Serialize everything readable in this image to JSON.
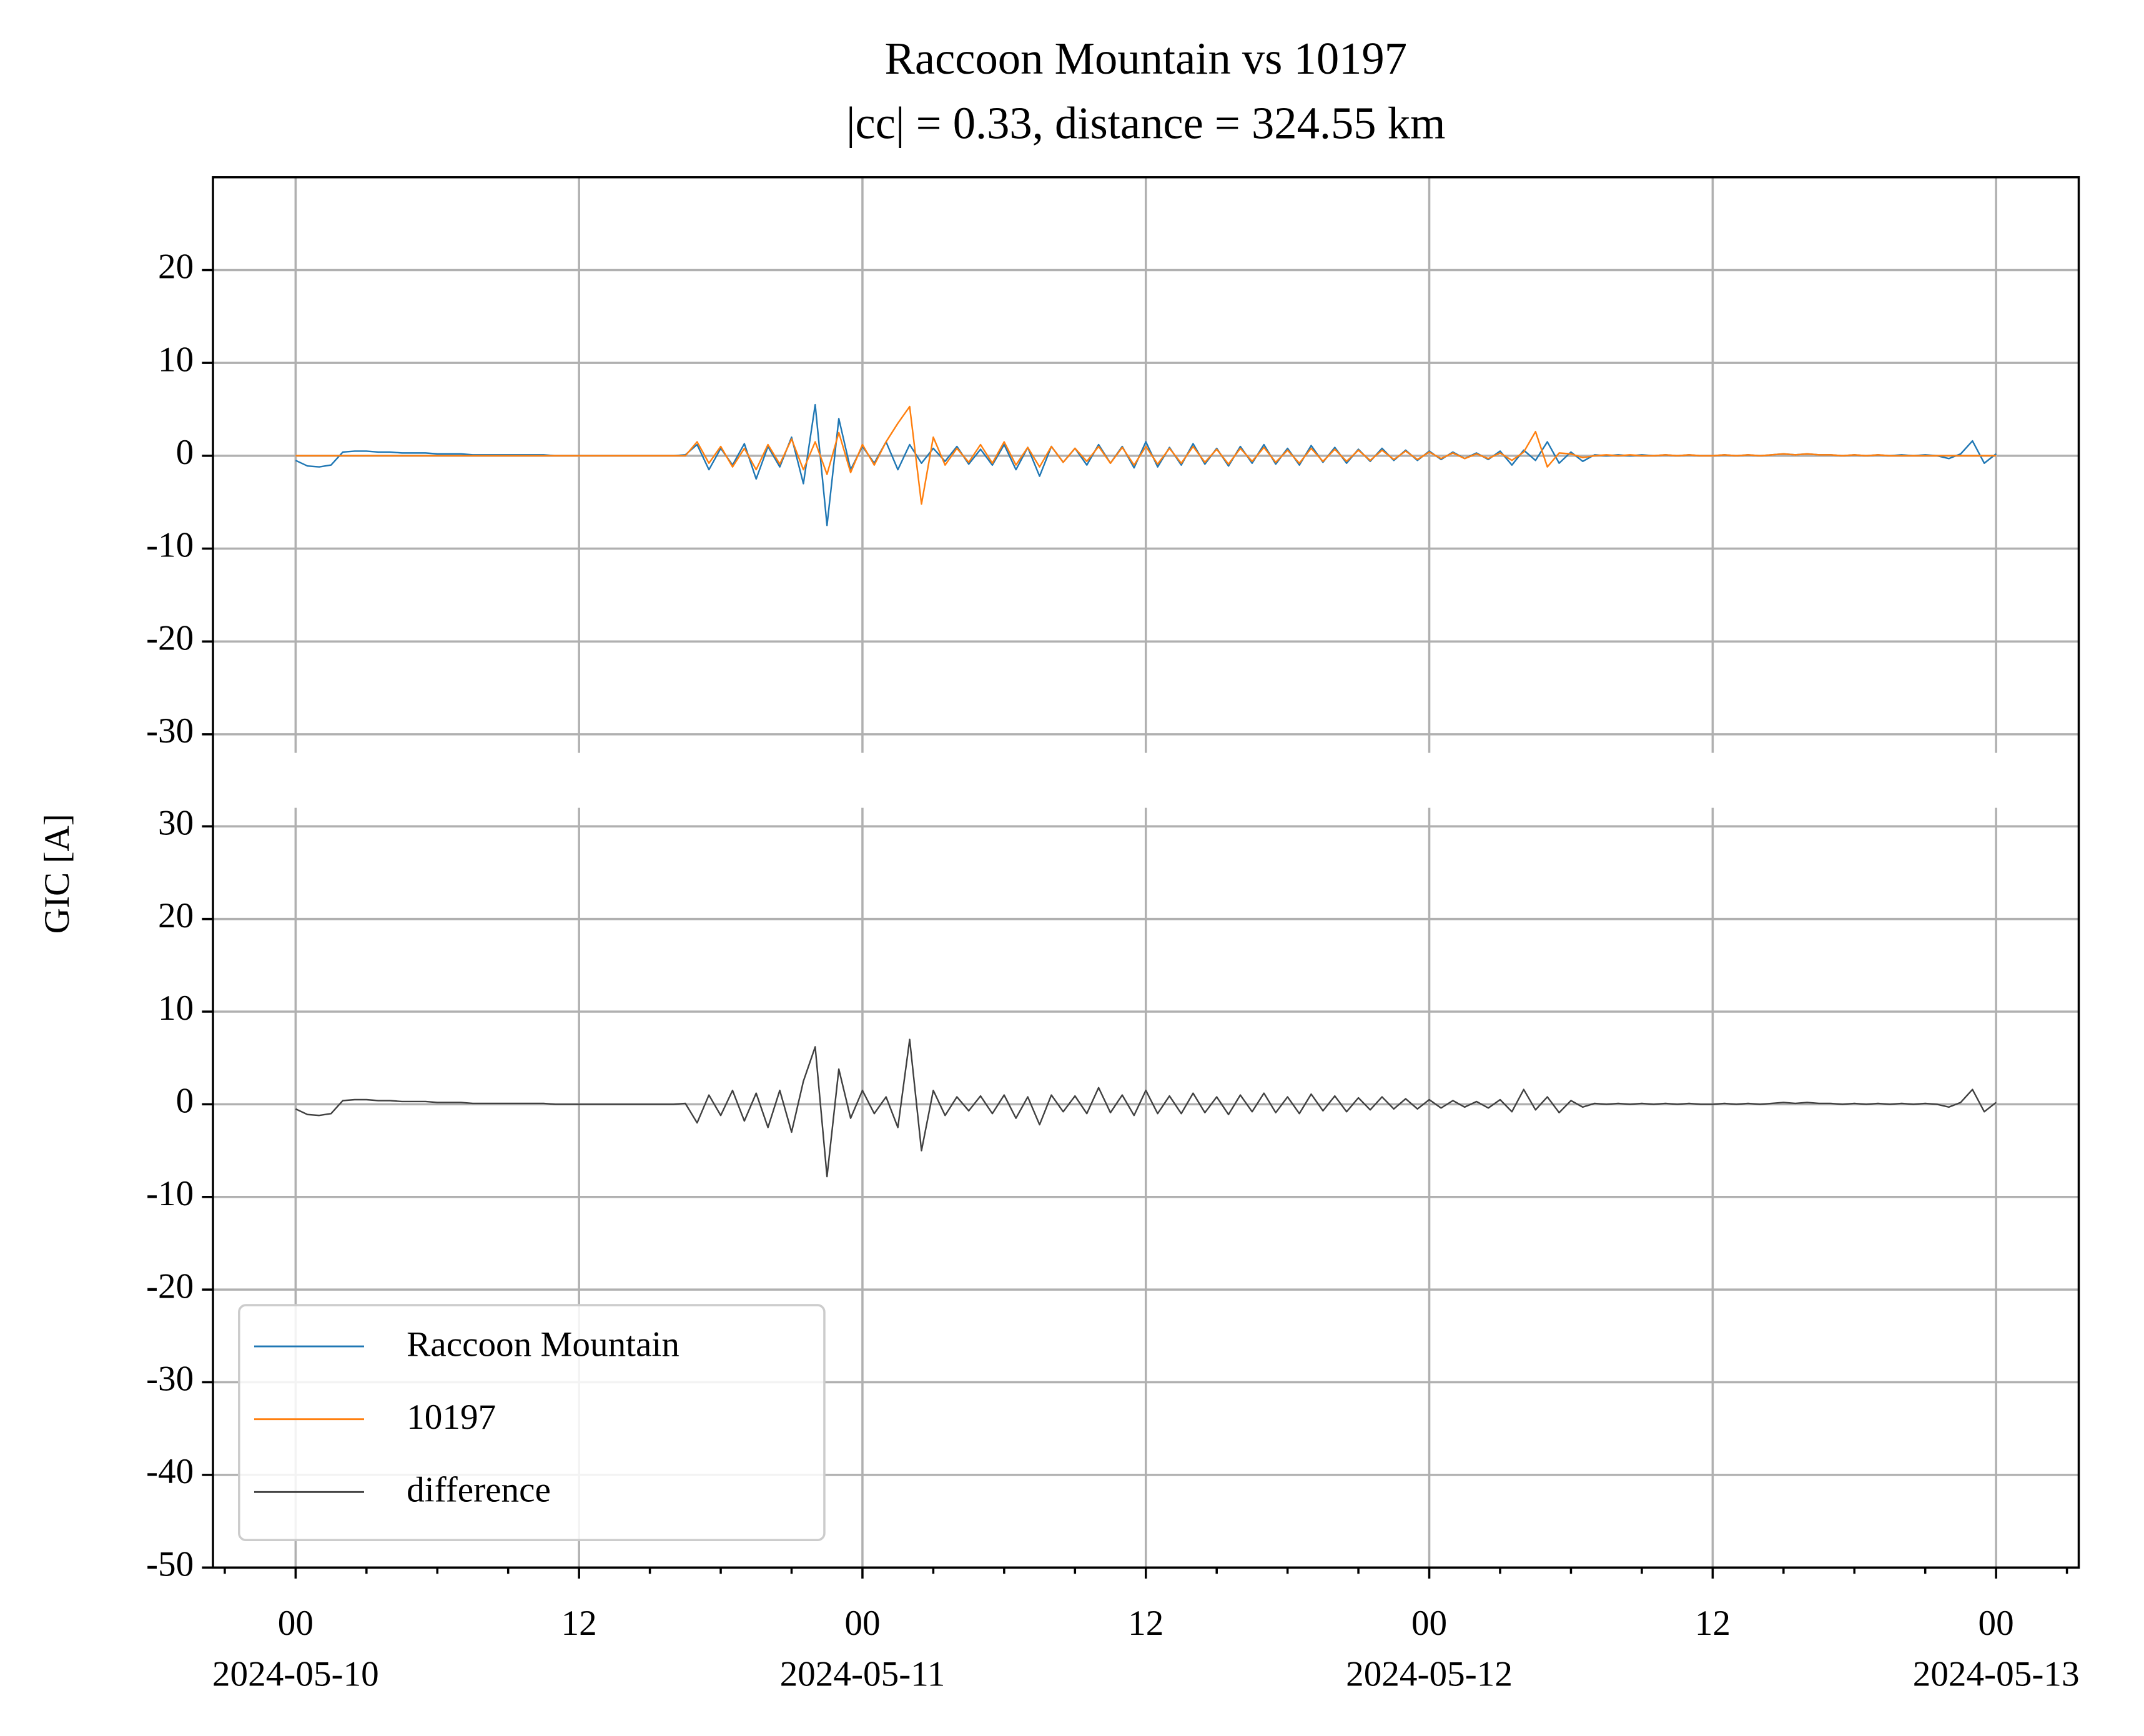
{
  "chart_data": [
    {
      "type": "line",
      "title": "Raccoon Mountain vs 10197",
      "subtitle": "|cc| = 0.33, distance = 324.55 km",
      "x": [
        "2024-05-10 00:00",
        "2024-05-10 00:30",
        "2024-05-10 01:00",
        "2024-05-10 01:30",
        "2024-05-10 02:00",
        "2024-05-10 02:30",
        "2024-05-10 03:00",
        "2024-05-10 03:30",
        "2024-05-10 04:00",
        "2024-05-10 04:30",
        "2024-05-10 05:00",
        "2024-05-10 05:30",
        "2024-05-10 06:00",
        "2024-05-10 06:30",
        "2024-05-10 07:00",
        "2024-05-10 07:30",
        "2024-05-10 08:00",
        "2024-05-10 08:30",
        "2024-05-10 09:00",
        "2024-05-10 09:30",
        "2024-05-10 10:00",
        "2024-05-10 10:30",
        "2024-05-10 11:00",
        "2024-05-10 11:30",
        "2024-05-10 12:00",
        "2024-05-10 12:30",
        "2024-05-10 13:00",
        "2024-05-10 13:30",
        "2024-05-10 14:00",
        "2024-05-10 14:30",
        "2024-05-10 15:00",
        "2024-05-10 15:30",
        "2024-05-10 16:00",
        "2024-05-10 16:30",
        "2024-05-10 17:00",
        "2024-05-10 17:30",
        "2024-05-10 18:00",
        "2024-05-10 18:30",
        "2024-05-10 19:00",
        "2024-05-10 19:30",
        "2024-05-10 20:00",
        "2024-05-10 20:30",
        "2024-05-10 21:00",
        "2024-05-10 21:30",
        "2024-05-10 22:00",
        "2024-05-10 22:30",
        "2024-05-10 23:00",
        "2024-05-10 23:30",
        "2024-05-11 00:00",
        "2024-05-11 00:30",
        "2024-05-11 01:00",
        "2024-05-11 01:30",
        "2024-05-11 02:00",
        "2024-05-11 02:30",
        "2024-05-11 03:00",
        "2024-05-11 03:30",
        "2024-05-11 04:00",
        "2024-05-11 04:30",
        "2024-05-11 05:00",
        "2024-05-11 05:30",
        "2024-05-11 06:00",
        "2024-05-11 06:30",
        "2024-05-11 07:00",
        "2024-05-11 07:30",
        "2024-05-11 08:00",
        "2024-05-11 08:30",
        "2024-05-11 09:00",
        "2024-05-11 09:30",
        "2024-05-11 10:00",
        "2024-05-11 10:30",
        "2024-05-11 11:00",
        "2024-05-11 11:30",
        "2024-05-11 12:00",
        "2024-05-11 12:30",
        "2024-05-11 13:00",
        "2024-05-11 13:30",
        "2024-05-11 14:00",
        "2024-05-11 14:30",
        "2024-05-11 15:00",
        "2024-05-11 15:30",
        "2024-05-11 16:00",
        "2024-05-11 16:30",
        "2024-05-11 17:00",
        "2024-05-11 17:30",
        "2024-05-11 18:00",
        "2024-05-11 18:30",
        "2024-05-11 19:00",
        "2024-05-11 19:30",
        "2024-05-11 20:00",
        "2024-05-11 20:30",
        "2024-05-11 21:00",
        "2024-05-11 21:30",
        "2024-05-11 22:00",
        "2024-05-11 22:30",
        "2024-05-11 23:00",
        "2024-05-11 23:30",
        "2024-05-12 00:00",
        "2024-05-12 00:30",
        "2024-05-12 01:00",
        "2024-05-12 01:30",
        "2024-05-12 02:00",
        "2024-05-12 02:30",
        "2024-05-12 03:00",
        "2024-05-12 03:30",
        "2024-05-12 04:00",
        "2024-05-12 04:30",
        "2024-05-12 05:00",
        "2024-05-12 05:30",
        "2024-05-12 06:00",
        "2024-05-12 06:30",
        "2024-05-12 07:00",
        "2024-05-12 07:30",
        "2024-05-12 08:00",
        "2024-05-12 08:30",
        "2024-05-12 09:00",
        "2024-05-12 09:30",
        "2024-05-12 10:00",
        "2024-05-12 10:30",
        "2024-05-12 11:00",
        "2024-05-12 11:30",
        "2024-05-12 12:00",
        "2024-05-12 12:30",
        "2024-05-12 13:00",
        "2024-05-12 13:30",
        "2024-05-12 14:00",
        "2024-05-12 14:30",
        "2024-05-12 15:00",
        "2024-05-12 15:30",
        "2024-05-12 16:00",
        "2024-05-12 16:30",
        "2024-05-12 17:00",
        "2024-05-12 17:30",
        "2024-05-12 18:00",
        "2024-05-12 18:30",
        "2024-05-12 19:00",
        "2024-05-12 19:30",
        "2024-05-12 20:00",
        "2024-05-12 20:30",
        "2024-05-12 21:00",
        "2024-05-12 21:30",
        "2024-05-12 22:00",
        "2024-05-12 22:30",
        "2024-05-12 23:00",
        "2024-05-12 23:30",
        "2024-05-13 00:00"
      ],
      "xlim": [
        "2024-05-09 20:30",
        "2024-05-13 03:30"
      ],
      "ylim": [
        -32,
        30
      ],
      "yticks": [
        -30,
        -20,
        -10,
        0,
        10,
        20
      ],
      "grid": true,
      "series": [
        {
          "name": "Raccoon Mountain",
          "color": "#1f77b4",
          "values": [
            -0.5,
            -1.1,
            -1.2,
            -1.0,
            0.4,
            0.5,
            0.5,
            0.4,
            0.4,
            0.3,
            0.3,
            0.3,
            0.2,
            0.2,
            0.2,
            0.1,
            0.1,
            0.1,
            0.1,
            0.1,
            0.1,
            0.1,
            0.0,
            0.0,
            0.0,
            0.0,
            0.0,
            0.0,
            0.0,
            0.0,
            0.0,
            0.0,
            0.0,
            0.1,
            1.2,
            -1.5,
            0.8,
            -1.0,
            1.3,
            -2.5,
            1.0,
            -1.2,
            2.0,
            -3.0,
            5.5,
            -7.5,
            4.0,
            -1.5,
            1.0,
            -0.8,
            1.5,
            -1.5,
            1.2,
            -0.8,
            0.8,
            -0.6,
            1.0,
            -0.9,
            0.7,
            -1.0,
            1.2,
            -1.5,
            0.9,
            -2.2,
            1.0,
            -0.7,
            0.8,
            -1.0,
            1.2,
            -0.8,
            1.0,
            -1.3,
            1.5,
            -1.2,
            0.9,
            -1.0,
            1.3,
            -0.9,
            0.8,
            -1.1,
            1.0,
            -0.8,
            1.2,
            -0.9,
            0.8,
            -1.0,
            1.1,
            -0.7,
            0.9,
            -0.8,
            0.7,
            -0.6,
            0.8,
            -0.5,
            0.6,
            -0.5,
            0.5,
            -0.4,
            0.4,
            -0.3,
            0.3,
            -0.4,
            0.5,
            -1.0,
            0.6,
            -0.5,
            1.5,
            -0.8,
            0.4,
            -0.6,
            0.1,
            0.0,
            0.1,
            0.0,
            0.1,
            0.0,
            0.1,
            0.0,
            0.1,
            0.0,
            0.0,
            0.1,
            0.0,
            0.1,
            0.0,
            0.1,
            0.2,
            0.1,
            0.2,
            0.1,
            0.1,
            0.0,
            0.1,
            0.0,
            0.1,
            0.0,
            0.1,
            0.0,
            0.1,
            0.0,
            -0.3,
            0.2,
            1.6,
            -0.8,
            0.2
          ]
        },
        {
          "name": "10197",
          "color": "#ff7f0e",
          "values": [
            0.0,
            0.0,
            0.0,
            0.0,
            0.0,
            0.0,
            0.0,
            0.0,
            0.0,
            0.0,
            0.0,
            0.0,
            0.0,
            0.0,
            0.0,
            0.0,
            0.0,
            0.0,
            0.0,
            0.0,
            0.0,
            0.0,
            0.0,
            0.0,
            0.0,
            0.0,
            0.0,
            0.0,
            0.0,
            0.0,
            0.0,
            0.0,
            0.0,
            0.0,
            1.5,
            -0.8,
            1.0,
            -1.2,
            0.8,
            -1.5,
            1.2,
            -0.9,
            1.8,
            -1.5,
            1.5,
            -2.0,
            2.5,
            -1.8,
            1.2,
            -1.0,
            1.5,
            3.5,
            5.3,
            -5.2,
            2.0,
            -1.0,
            0.8,
            -0.7,
            1.2,
            -0.8,
            1.5,
            -1.0,
            0.9,
            -1.2,
            1.0,
            -0.7,
            0.8,
            -0.6,
            1.0,
            -0.8,
            0.9,
            -1.0,
            1.0,
            -0.9,
            0.8,
            -0.8,
            1.0,
            -0.7,
            0.7,
            -0.9,
            0.8,
            -0.6,
            0.9,
            -0.7,
            0.6,
            -0.8,
            0.8,
            -0.6,
            0.7,
            -0.6,
            0.6,
            -0.5,
            0.6,
            -0.4,
            0.5,
            -0.4,
            0.4,
            -0.3,
            0.3,
            -0.3,
            0.2,
            -0.3,
            0.3,
            -0.5,
            0.4,
            2.6,
            -1.2,
            0.3,
            0.2,
            -0.2,
            0.0,
            0.1,
            0.0,
            0.1,
            0.0,
            0.0,
            0.1,
            0.0,
            0.1,
            0.0,
            0.0,
            0.1,
            0.0,
            0.1,
            0.0,
            0.1,
            0.2,
            0.1,
            0.2,
            0.1,
            0.1,
            0.0,
            0.1,
            0.0,
            0.1,
            0.0,
            0.0,
            0.0,
            0.0,
            0.0,
            0.0,
            0.0,
            0.0,
            0.0,
            0.0
          ]
        }
      ]
    },
    {
      "type": "line",
      "ylabel": "GIC [A]",
      "ylim": [
        -50,
        32
      ],
      "yticks": [
        -50,
        -40,
        -30,
        -20,
        -10,
        0,
        10,
        20,
        30
      ],
      "grid": true,
      "legend": "lower left",
      "xticks": [
        {
          "value": "2024-05-10 00:00",
          "label": "00"
        },
        {
          "value": "2024-05-10 12:00",
          "label": "12"
        },
        {
          "value": "2024-05-11 00:00",
          "label": "00"
        },
        {
          "value": "2024-05-11 12:00",
          "label": "12"
        },
        {
          "value": "2024-05-12 00:00",
          "label": "00"
        },
        {
          "value": "2024-05-12 12:00",
          "label": "12"
        },
        {
          "value": "2024-05-13 00:00",
          "label": "00"
        }
      ],
      "xtick_dates": [
        {
          "value": "2024-05-10 00:00",
          "label": "2024-05-10"
        },
        {
          "value": "2024-05-11 00:00",
          "label": "2024-05-11"
        },
        {
          "value": "2024-05-12 00:00",
          "label": "2024-05-12"
        },
        {
          "value": "2024-05-13 00:00",
          "label": "2024-05-13"
        }
      ],
      "xticks_minor": [
        "2024-05-09 21:00",
        "2024-05-10 03:00",
        "2024-05-10 06:00",
        "2024-05-10 09:00",
        "2024-05-10 15:00",
        "2024-05-10 18:00",
        "2024-05-10 21:00",
        "2024-05-11 03:00",
        "2024-05-11 06:00",
        "2024-05-11 09:00",
        "2024-05-11 15:00",
        "2024-05-11 18:00",
        "2024-05-11 21:00",
        "2024-05-12 03:00",
        "2024-05-12 06:00",
        "2024-05-12 09:00",
        "2024-05-12 15:00",
        "2024-05-12 18:00",
        "2024-05-12 21:00",
        "2024-05-13 03:00"
      ],
      "series": [
        {
          "name": "difference",
          "color": "#404040",
          "values": [
            -0.5,
            -1.1,
            -1.2,
            -1.0,
            0.4,
            0.5,
            0.5,
            0.4,
            0.4,
            0.3,
            0.3,
            0.3,
            0.2,
            0.2,
            0.2,
            0.1,
            0.1,
            0.1,
            0.1,
            0.1,
            0.1,
            0.1,
            0.0,
            0.0,
            0.0,
            0.0,
            0.0,
            0.0,
            0.0,
            0.0,
            0.0,
            0.0,
            0.0,
            0.1,
            -2.0,
            1.0,
            -1.2,
            1.5,
            -1.8,
            1.2,
            -2.5,
            1.5,
            -3.0,
            2.5,
            6.2,
            -7.8,
            3.8,
            -1.5,
            1.5,
            -1.0,
            0.8,
            -2.5,
            7.0,
            -5.0,
            1.5,
            -1.2,
            0.8,
            -0.7,
            0.9,
            -1.0,
            1.0,
            -1.5,
            0.8,
            -2.2,
            1.0,
            -0.8,
            0.9,
            -1.0,
            1.8,
            -0.9,
            1.0,
            -1.2,
            1.5,
            -1.0,
            0.9,
            -1.0,
            1.2,
            -0.9,
            0.8,
            -1.1,
            1.0,
            -0.8,
            1.2,
            -0.9,
            0.8,
            -1.0,
            1.1,
            -0.7,
            0.9,
            -0.8,
            0.7,
            -0.6,
            0.8,
            -0.5,
            0.6,
            -0.5,
            0.5,
            -0.4,
            0.4,
            -0.3,
            0.3,
            -0.4,
            0.5,
            -0.8,
            1.6,
            -0.6,
            0.8,
            -0.9,
            0.4,
            -0.3,
            0.1,
            0.0,
            0.1,
            0.0,
            0.1,
            0.0,
            0.1,
            0.0,
            0.1,
            0.0,
            0.0,
            0.1,
            0.0,
            0.1,
            0.0,
            0.1,
            0.2,
            0.1,
            0.2,
            0.1,
            0.1,
            0.0,
            0.1,
            0.0,
            0.1,
            0.0,
            0.1,
            0.0,
            0.1,
            0.0,
            -0.3,
            0.2,
            1.6,
            -0.8,
            0.2
          ]
        }
      ]
    }
  ]
}
